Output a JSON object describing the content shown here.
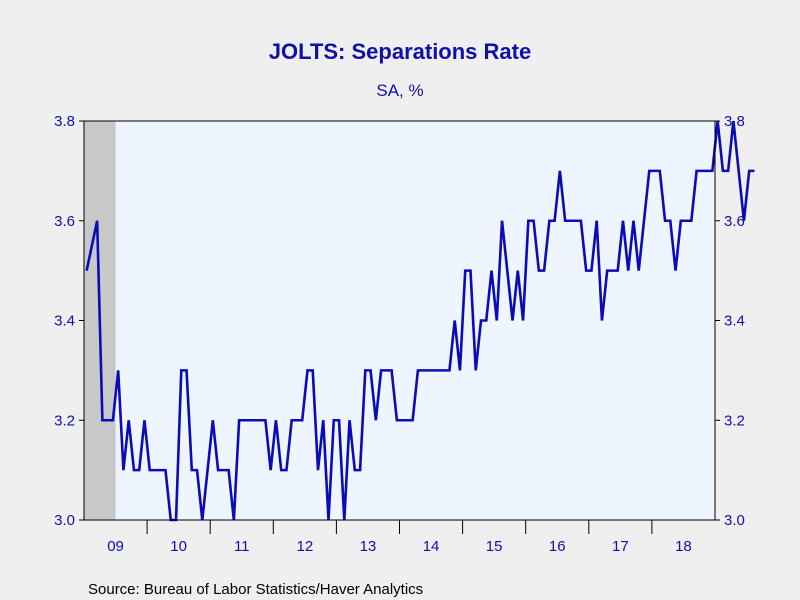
{
  "title": "JOLTS: Separations Rate",
  "subtitle": "SA, %",
  "source": "Source:  Bureau of Labor Statistics/Haver Analytics",
  "colors": {
    "background": "#efefef",
    "plot_background": "#eef5ff",
    "line": "#0b0bb8",
    "text": "#1010a8",
    "recession": "#c8c8c8"
  },
  "chart_data": {
    "type": "line",
    "title": "JOLTS: Separations Rate",
    "subtitle": "SA, %",
    "xlabel": "",
    "ylabel": "",
    "ylim": [
      3.0,
      3.8
    ],
    "yticks": [
      "3.0",
      "3.2",
      "3.4",
      "3.6",
      "3.8"
    ],
    "xtick_labels": [
      "09",
      "10",
      "11",
      "12",
      "13",
      "14",
      "15",
      "16",
      "17",
      "18"
    ],
    "x_start": "2009-01",
    "x_end": "2018-12",
    "dual_axis": true,
    "grid": false,
    "recession_shading": {
      "start": "2009-01",
      "end": "2009-06"
    },
    "series": [
      {
        "values": [
          3.5,
          3.55,
          3.6,
          3.2,
          3.2,
          3.2,
          3.3,
          3.1,
          3.2,
          3.1,
          3.1,
          3.2,
          3.1,
          3.1,
          3.1,
          3.1,
          3.0,
          3.0,
          3.3,
          3.3,
          3.1,
          3.1,
          3.0,
          3.1,
          3.2,
          3.1,
          3.1,
          3.1,
          3.0,
          3.2,
          3.2,
          3.2,
          3.2,
          3.2,
          3.2,
          3.1,
          3.2,
          3.1,
          3.1,
          3.2,
          3.2,
          3.2,
          3.3,
          3.3,
          3.1,
          3.2,
          3.0,
          3.2,
          3.2,
          3.0,
          3.2,
          3.1,
          3.1,
          3.3,
          3.3,
          3.2,
          3.3,
          3.3,
          3.3,
          3.2,
          3.2,
          3.2,
          3.2,
          3.3,
          3.3,
          3.3,
          3.3,
          3.3,
          3.3,
          3.3,
          3.4,
          3.3,
          3.5,
          3.5,
          3.3,
          3.4,
          3.4,
          3.5,
          3.4,
          3.6,
          3.5,
          3.4,
          3.5,
          3.4,
          3.6,
          3.6,
          3.5,
          3.5,
          3.6,
          3.6,
          3.7,
          3.6,
          3.6,
          3.6,
          3.6,
          3.5,
          3.5,
          3.6,
          3.4,
          3.5,
          3.5,
          3.5,
          3.6,
          3.5,
          3.6,
          3.5,
          3.6,
          3.7,
          3.7,
          3.7,
          3.6,
          3.6,
          3.5,
          3.6,
          3.6,
          3.6,
          3.7,
          3.7,
          3.7,
          3.7,
          3.8,
          3.7,
          3.7,
          3.8,
          3.7,
          3.6,
          3.7,
          3.7
        ]
      }
    ]
  }
}
